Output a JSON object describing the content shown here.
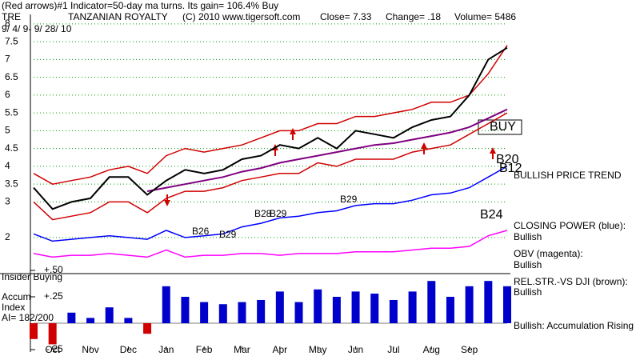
{
  "chart_data": {
    "type": "line",
    "title": "(Red arrows)#1 Indicator=50-day ma turns. Its gain= 106.4% Buy",
    "header": [
      "TRE",
      "TANZANIAN ROYALTY",
      "(C) 2010 www.tigersoft.com",
      "Close= 7.33",
      "Change= .18",
      "Volume= 5486"
    ],
    "subtitle": "9/ 4/ 9- 9/ 28/ 10",
    "categories": [
      null,
      "Oct",
      null,
      "Nov",
      null,
      "Dec",
      null,
      "Jan",
      null,
      "Feb",
      null,
      "Mar",
      null,
      "Apr",
      null,
      "May",
      null,
      "Jun",
      null,
      "Jul",
      null,
      "Aug",
      null,
      "Sep",
      null,
      null
    ],
    "ylim": [
      1.2,
      8.2
    ],
    "yticks": [
      2,
      3,
      3.5,
      4,
      4.5,
      5,
      5.5,
      6,
      6.5,
      7,
      7.5,
      8
    ],
    "grid": true,
    "y2lim": [
      -0.25,
      0.5
    ],
    "y2ticks": [
      {
        "value": 0.5,
        "label": "+.50"
      },
      {
        "value": 0.25,
        "label": "+.25"
      },
      {
        "value": -0.25,
        "label": "-.25"
      }
    ],
    "series": [
      {
        "color": "#d00000",
        "values": [
          3.8,
          3.5,
          3.6,
          3.7,
          3.9,
          4.0,
          3.8,
          4.3,
          4.5,
          4.4,
          4.5,
          4.6,
          4.8,
          5.0,
          5.0,
          5.2,
          5.2,
          5.4,
          5.4,
          5.5,
          5.6,
          5.8,
          5.8,
          6.0,
          6.6,
          7.4
        ]
      },
      {
        "color": "#d00000",
        "values": [
          3.0,
          2.5,
          2.6,
          2.7,
          3.0,
          3.0,
          2.7,
          3.1,
          3.3,
          3.3,
          3.4,
          3.6,
          3.7,
          3.8,
          3.8,
          4.1,
          4.0,
          4.2,
          4.2,
          4.2,
          4.4,
          4.5,
          4.6,
          4.9,
          5.2,
          5.5
        ]
      },
      {
        "color": "#800080",
        "values": [
          null,
          null,
          null,
          null,
          null,
          null,
          3.3,
          3.4,
          3.5,
          3.6,
          3.7,
          3.85,
          3.95,
          4.1,
          4.2,
          4.3,
          4.4,
          4.5,
          4.6,
          4.65,
          4.75,
          4.85,
          4.95,
          5.1,
          5.35,
          5.6
        ]
      },
      {
        "color": "#000000",
        "values": [
          3.4,
          2.8,
          3.0,
          3.1,
          3.7,
          3.7,
          3.2,
          3.6,
          3.9,
          3.8,
          3.9,
          4.2,
          4.3,
          4.6,
          4.5,
          4.8,
          4.5,
          5.0,
          4.9,
          4.8,
          5.1,
          5.3,
          5.4,
          6.0,
          7.0,
          7.33
        ]
      },
      {
        "color": "#0000ff",
        "values": [
          2.1,
          1.9,
          1.95,
          2.0,
          2.05,
          2.0,
          1.95,
          2.2,
          2.0,
          2.05,
          2.1,
          2.3,
          2.4,
          2.55,
          2.6,
          2.7,
          2.75,
          2.9,
          2.95,
          2.95,
          3.05,
          3.2,
          3.25,
          3.4,
          3.7,
          4.0
        ]
      },
      {
        "color": "#ff00ff",
        "values": [
          1.55,
          1.45,
          1.5,
          1.5,
          1.55,
          1.5,
          1.45,
          1.65,
          1.45,
          1.5,
          1.5,
          1.55,
          1.55,
          1.5,
          1.55,
          1.55,
          1.55,
          1.6,
          1.6,
          1.6,
          1.65,
          1.7,
          1.7,
          1.75,
          2.05,
          2.2
        ]
      },
      {
        "color": "#0000cc",
        "axis": "y2",
        "values": [
          -0.15,
          -0.2,
          0.1,
          0.05,
          0.15,
          0.05,
          -0.1,
          0.35,
          0.25,
          0.2,
          0.18,
          0.2,
          0.22,
          0.3,
          0.2,
          0.32,
          0.25,
          0.3,
          0.28,
          0.22,
          0.3,
          0.4,
          0.25,
          0.35,
          0.4,
          0.35
        ]
      }
    ],
    "annotations": [
      "B26",
      "B29",
      "B28",
      "B29",
      "B29",
      "B24",
      "B20",
      "B12",
      "BUY"
    ],
    "side_labels": [
      "BULLISH PRICE TREND",
      "CLOSING POWER (blue):",
      "Bullish",
      "OBV (magenta):",
      "Bullish",
      "REL.STR.-VS DJI (brown):",
      "Bullish",
      "Bullish: Accumulation Rising"
    ],
    "y2_labels": [
      "Insider Buying",
      "Accum",
      "Index",
      "AI= 182/200"
    ]
  }
}
